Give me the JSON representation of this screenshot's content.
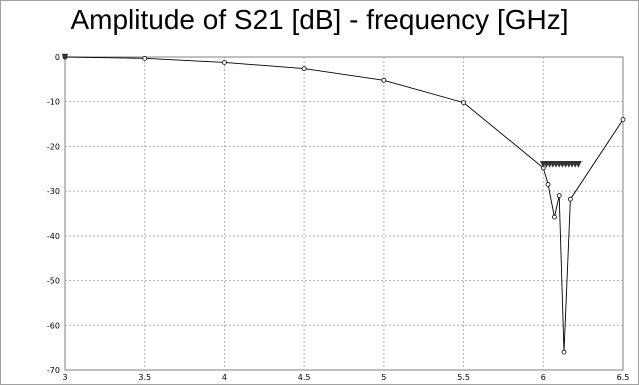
{
  "chart_data": {
    "type": "line",
    "title": "Amplitude of S21 [dB] - frequency [GHz]",
    "xlabel": "",
    "ylabel": "",
    "xlim": [
      3,
      6.5
    ],
    "ylim": [
      -70,
      0
    ],
    "x_ticks": [
      "3",
      "3.5",
      "4",
      "4.5",
      "5",
      "5.5",
      "6",
      "6.5"
    ],
    "y_ticks": [
      "0",
      "-10",
      "-20",
      "-30",
      "-40",
      "-50",
      "-60",
      "-70"
    ],
    "grid": true,
    "series": [
      {
        "name": "",
        "x": [
          3,
          3.5,
          4,
          4.5,
          5,
          5.5,
          6,
          6.03,
          6.07,
          6.1,
          6.13,
          6.17,
          6.5
        ],
        "y": [
          0,
          -0.3,
          -1.2,
          -2.6,
          -5.2,
          -10.2,
          -24.8,
          -28.5,
          -35.8,
          -31,
          -66,
          -31.8,
          -14
        ]
      }
    ],
    "markers": [
      {
        "x": 3,
        "y": 0,
        "symbol": "triangle-down"
      },
      {
        "x": 6,
        "y": -24,
        "symbol": "triangle-down"
      },
      {
        "x": 6.02,
        "y": -24,
        "symbol": "triangle-down"
      },
      {
        "x": 6.04,
        "y": -24,
        "symbol": "triangle-down"
      },
      {
        "x": 6.06,
        "y": -24,
        "symbol": "triangle-down"
      },
      {
        "x": 6.08,
        "y": -24,
        "symbol": "triangle-down"
      },
      {
        "x": 6.1,
        "y": -24,
        "symbol": "triangle-down"
      },
      {
        "x": 6.12,
        "y": -24,
        "symbol": "triangle-down"
      },
      {
        "x": 6.14,
        "y": -24,
        "symbol": "triangle-down"
      },
      {
        "x": 6.16,
        "y": -24,
        "symbol": "triangle-down"
      },
      {
        "x": 6.18,
        "y": -24,
        "symbol": "triangle-down"
      },
      {
        "x": 6.2,
        "y": -24,
        "symbol": "triangle-down"
      },
      {
        "x": 6.22,
        "y": -24,
        "symbol": "triangle-down"
      }
    ],
    "colors": {
      "line": "#000000",
      "grid": "#b0b0b0",
      "marker": "#333333"
    }
  }
}
